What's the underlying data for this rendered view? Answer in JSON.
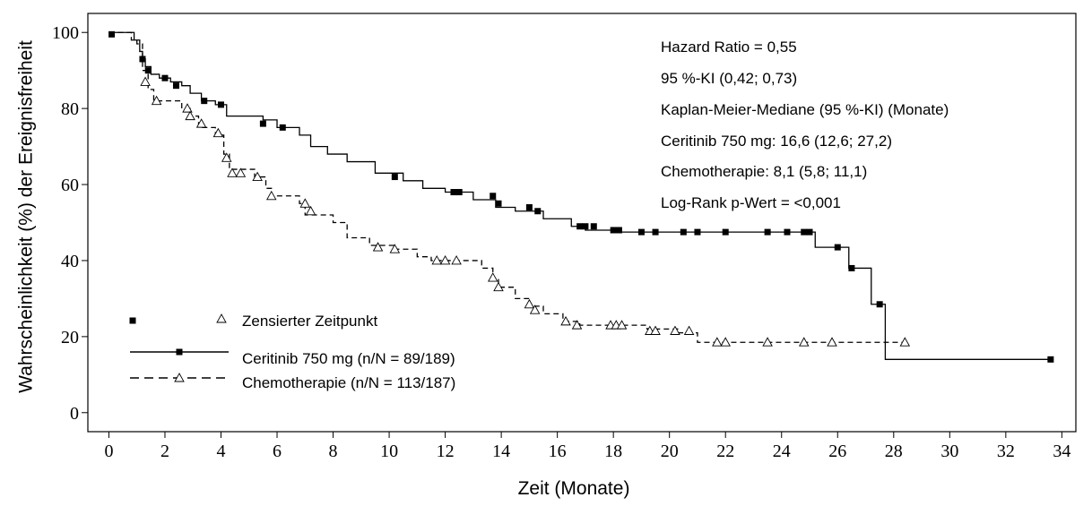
{
  "chart_data": {
    "type": "step",
    "xlabel": "Zeit (Monate)",
    "ylabel": "Wahrscheinlichkeit (%) der Ereignisfreiheit",
    "xlim": [
      -0.75,
      34.5
    ],
    "ylim": [
      -5,
      105
    ],
    "xticks": [
      0,
      2,
      4,
      6,
      8,
      10,
      12,
      14,
      16,
      18,
      20,
      22,
      24,
      26,
      28,
      30,
      32,
      34
    ],
    "yticks": [
      0,
      20,
      40,
      60,
      80,
      100
    ],
    "annotations": [
      "Hazard Ratio = 0,55",
      "95 %-KI (0,42; 0,73)",
      "Kaplan-Meier-Mediane (95 %-KI) (Monate)",
      "Ceritinib 750 mg: 16,6 (12,6; 27,2)",
      "Chemotherapie: 8,1 (5,8; 11,1)",
      "Log-Rank p-Wert = <0,001"
    ],
    "censor_label": "Zensierter Zeitpunkt",
    "series": [
      {
        "name": "Ceritinib 750 mg (n/N = 89/189)",
        "color": "#000000",
        "dash": "solid",
        "marker": "square",
        "x": [
          0,
          0.9,
          1.1,
          1.2,
          1.3,
          1.5,
          1.8,
          2.2,
          2.6,
          2.9,
          3.3,
          3.8,
          4.2,
          5.5,
          6.0,
          6.8,
          7.2,
          7.8,
          8.5,
          9.5,
          10.5,
          11.2,
          12.0,
          13.0,
          13.8,
          14.5,
          15.5,
          16.5,
          17.0,
          18.2,
          25.2,
          26.4,
          27.2,
          27.7,
          33.6
        ],
        "values": [
          100,
          98,
          95,
          93,
          91,
          89,
          88,
          87,
          86,
          84,
          82,
          81,
          78,
          77,
          75,
          73,
          70,
          68,
          66,
          63,
          61,
          59,
          58,
          56,
          54,
          53,
          51,
          49,
          48,
          47.5,
          43.5,
          38,
          28.5,
          14,
          14
        ],
        "censor_x": [
          0.1,
          1.2,
          1.4,
          2.0,
          2.4,
          3.4,
          4.0,
          5.5,
          6.2,
          10.2,
          12.3,
          12.5,
          13.7,
          13.9,
          15.0,
          15.3,
          16.8,
          17.0,
          17.3,
          18.0,
          18.2,
          19.0,
          19.5,
          20.5,
          21.0,
          22.0,
          23.5,
          24.2,
          24.8,
          25.0,
          26.0,
          26.5,
          27.5,
          33.6
        ],
        "censor_y": [
          99.5,
          93,
          90,
          88,
          86,
          82,
          81,
          76,
          75,
          62,
          58,
          58,
          57,
          55,
          54,
          53,
          49,
          49,
          49,
          48,
          48,
          47.5,
          47.5,
          47.5,
          47.5,
          47.5,
          47.5,
          47.5,
          47.5,
          47.5,
          43.5,
          38,
          28.5,
          14
        ]
      },
      {
        "name": "Chemotherapie (n/N = 113/187)",
        "color": "#000000",
        "dash": "dashed",
        "marker": "triangle",
        "x": [
          0,
          0.8,
          1.0,
          1.2,
          1.4,
          1.6,
          2.6,
          2.9,
          3.2,
          3.8,
          4.1,
          4.3,
          5.2,
          5.6,
          5.8,
          6.8,
          7.0,
          8.0,
          8.5,
          9.3,
          10.2,
          11.0,
          11.5,
          13.3,
          13.7,
          13.9,
          14.5,
          15.0,
          15.5,
          16.2,
          16.8,
          19.2,
          20.3,
          21.0,
          28.4
        ],
        "values": [
          100,
          98,
          97,
          90,
          85,
          82,
          80,
          78,
          75,
          73,
          68,
          64,
          62,
          59,
          57,
          55,
          52,
          50,
          46,
          44,
          43,
          41,
          40,
          38,
          35,
          33,
          30,
          28,
          26,
          24,
          23,
          22,
          21,
          18.5,
          18.5
        ],
        "censor_x": [
          1.3,
          1.7,
          2.8,
          2.9,
          3.3,
          3.9,
          4.2,
          4.4,
          4.7,
          5.3,
          5.8,
          7.0,
          7.2,
          9.6,
          10.2,
          11.7,
          12.0,
          12.4,
          13.7,
          13.9,
          15.0,
          15.2,
          16.3,
          16.7,
          17.9,
          18.1,
          18.3,
          19.3,
          19.5,
          20.2,
          20.7,
          21.7,
          22.0,
          23.5,
          24.8,
          25.8,
          28.4
        ],
        "censor_y": [
          87,
          82,
          80,
          78,
          76,
          73.5,
          67,
          63,
          63,
          62,
          57,
          55,
          53,
          43.5,
          43,
          40,
          40,
          40,
          35.5,
          33,
          28.5,
          27,
          24,
          23,
          23,
          23,
          23,
          21.5,
          21.5,
          21.5,
          21.5,
          18.5,
          18.5,
          18.5,
          18.5,
          18.5,
          18.5
        ]
      }
    ]
  }
}
